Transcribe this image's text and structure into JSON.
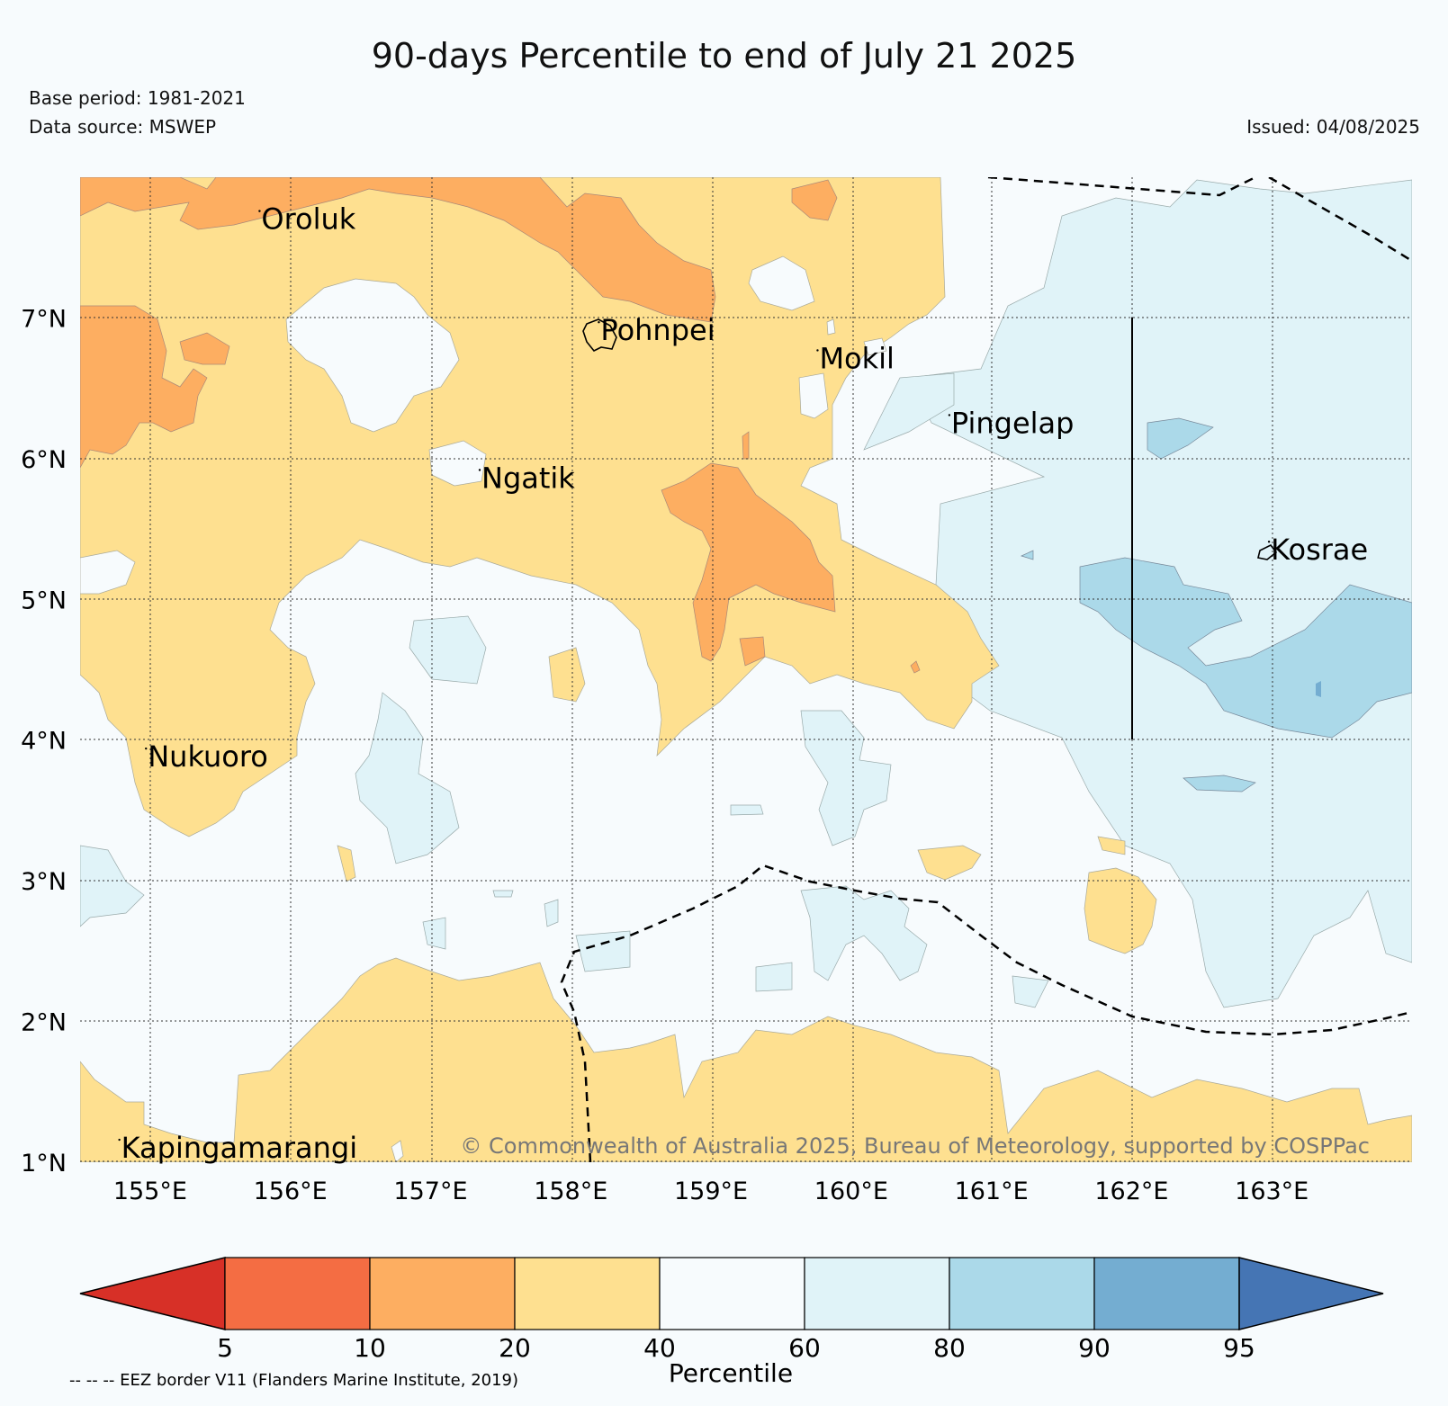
{
  "title": "90-days Percentile to end of July 21 2025",
  "base_period": "Base period: 1981-2021",
  "data_source": "Data source: MSWEP",
  "issued": "Issued: 04/08/2025",
  "copyright": "© Commonwealth of Australia 2025, Bureau of Meteorology, supported by COSPPac",
  "eez_note": "-- -- -- EEZ border V11 (Flanders Marine Institute, 2019)",
  "map": {
    "lon_range": [
      154.5,
      164.0
    ],
    "lat_range": [
      1.0,
      8.0
    ],
    "lon_ticks": [
      "155°E",
      "156°E",
      "157°E",
      "158°E",
      "159°E",
      "160°E",
      "161°E",
      "162°E",
      "163°E"
    ],
    "lat_ticks": [
      "1°N",
      "2°N",
      "3°N",
      "4°N",
      "5°N",
      "6°N",
      "7°N"
    ],
    "places": [
      {
        "name": "Oroluk",
        "lon": 155.78,
        "lat": 7.67
      },
      {
        "name": "Pohnpei",
        "lon": 158.2,
        "lat": 6.88
      },
      {
        "name": "Mokil",
        "lon": 159.76,
        "lat": 6.68
      },
      {
        "name": "Pingelap",
        "lon": 160.7,
        "lat": 6.22
      },
      {
        "name": "Ngatik",
        "lon": 157.35,
        "lat": 5.83
      },
      {
        "name": "Kosrae",
        "lon": 162.98,
        "lat": 5.32
      },
      {
        "name": "Nukuoro",
        "lon": 154.97,
        "lat": 3.85
      },
      {
        "name": "Kapingamarangi",
        "lon": 154.78,
        "lat": 1.07
      }
    ]
  },
  "legend": {
    "title": "Percentile",
    "ticks": [
      "5",
      "10",
      "20",
      "40",
      "60",
      "80",
      "90",
      "95"
    ],
    "colors": [
      "#d73027",
      "#f46d43",
      "#fdae61",
      "#fee090",
      "#f7fbfd",
      "#e0f3f8",
      "#abd9e9",
      "#74add1",
      "#4575b4"
    ]
  }
}
